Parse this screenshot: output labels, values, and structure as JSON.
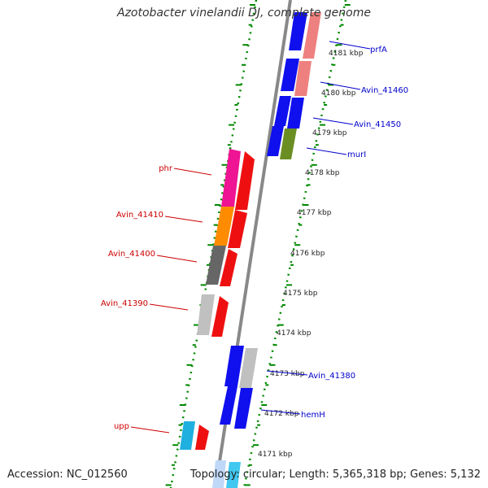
{
  "title": "Azotobacter vinelandii DJ, complete genome",
  "footer": {
    "accession": "Accession: NC_012560",
    "topology": "Topology: circular; Length: 5,365,318 bp; Genes: 5,132"
  },
  "colors": {
    "forward_label": "#0000cc",
    "reverse_label": "#cc0000",
    "backbone": "#888888",
    "ticks": "#008800",
    "gene_blue": "#1010ee",
    "gene_red": "#ee1010",
    "gene_salmon": "#ee8080",
    "gene_olive": "#6b8e23",
    "gene_pink": "#ee1493",
    "gene_orange": "#ff8c00",
    "gene_gray": "#666666",
    "gene_lightgray": "#c0c0c0",
    "gene_cyan": "#20b0e0",
    "gene_lightblue": "#c0d8f8"
  },
  "scale_labels": [
    "4181 kbp",
    "4180 kbp",
    "4179 kbp",
    "4178 kbp",
    "4177 kbp",
    "4176 kbp",
    "4175 kbp",
    "4174 kbp",
    "4173 kbp",
    "4172 kbp",
    "4171 kbp"
  ],
  "forward_genes": [
    {
      "label": "prfA",
      "color": "#1010ee"
    },
    {
      "label": "Avin_41460",
      "color": "#1010ee"
    },
    {
      "label": "Avin_41450",
      "color": "#1010ee"
    },
    {
      "label": "murI",
      "color": "#1010ee"
    },
    {
      "label": "Avin_41380",
      "color": "#1010ee"
    },
    {
      "label": "hemH",
      "color": "#1010ee"
    }
  ],
  "reverse_genes": [
    {
      "label": "phr",
      "color": "#ee1010"
    },
    {
      "label": "Avin_41410",
      "color": "#ee1010"
    },
    {
      "label": "Avin_41400",
      "color": "#ee1010"
    },
    {
      "label": "Avin_41390",
      "color": "#ee1010"
    },
    {
      "label": "upp",
      "color": "#ee1010"
    }
  ]
}
